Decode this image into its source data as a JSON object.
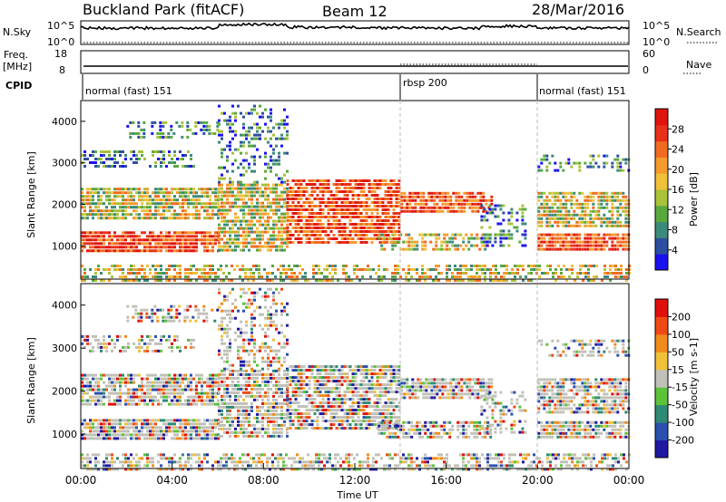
{
  "header": {
    "site": "Buckland Park (fitACF)",
    "beam": "Beam 12",
    "date": "28/Mar/2016"
  },
  "panels": {
    "nsky_label": "N.Sky",
    "nsearch_label": "N.Search",
    "freq_label_1": "Freq.",
    "freq_label_2": "[MHz]",
    "nave_label": "Nave",
    "cpid_label": "CPID",
    "nsky_ticks": [
      "10^5",
      "10^0"
    ],
    "nsearch_ticks": [
      "10^5",
      "10^0"
    ],
    "freq_ticks": [
      "18",
      "8"
    ],
    "nave_ticks": [
      "60",
      "0"
    ]
  },
  "cpid_segments": [
    {
      "label": "normal (fast) 151",
      "start_hour": 0,
      "end_hour": 14
    },
    {
      "label": "rbsp 200",
      "start_hour": 14,
      "end_hour": 20
    },
    {
      "label": "normal (fast) 151",
      "start_hour": 20,
      "end_hour": 24
    }
  ],
  "chart_data": [
    {
      "type": "heatmap",
      "parameter": "Power",
      "ylabel": "Slant Range [km]",
      "xlabel": "Time UT",
      "xlim_hours": [
        0,
        24
      ],
      "ylim": [
        200,
        4500
      ],
      "yticks": [
        1000,
        2000,
        3000,
        4000
      ],
      "colorbar_label": "Power [dB]",
      "colorbar_ticks": [
        "4",
        "8",
        "12",
        "16",
        "20",
        "24",
        "28"
      ],
      "colorbar_colors": [
        "#1a10f0",
        "#2d4fa0",
        "#3c8a7a",
        "#59a83e",
        "#a8c23a",
        "#f0c03a",
        "#f59a2c",
        "#f06a22",
        "#e8301a",
        "#e0140e"
      ]
    },
    {
      "type": "heatmap",
      "parameter": "Velocity",
      "ylabel": "Slant Range [km]",
      "xlabel": "Time UT",
      "xlim_hours": [
        0,
        24
      ],
      "ylim": [
        200,
        4500
      ],
      "yticks": [
        1000,
        2000,
        3000,
        4000
      ],
      "colorbar_label": "Velocity [m s-1]",
      "colorbar_ticks": [
        "200",
        "100",
        "50",
        "15",
        "-15",
        "-50",
        "-100",
        "-200"
      ],
      "colorbar_colors": [
        "#2018a0",
        "#2a50b0",
        "#2e8a72",
        "#5cc23a",
        "#c0c0b8",
        "#f0c03a",
        "#f08a1c",
        "#f04a14",
        "#e0100c"
      ]
    }
  ],
  "time_axis": {
    "ticks": [
      "00:00",
      "04:00",
      "08:00",
      "12:00",
      "16:00",
      "20:00",
      "00:00"
    ],
    "label": "Time UT"
  }
}
